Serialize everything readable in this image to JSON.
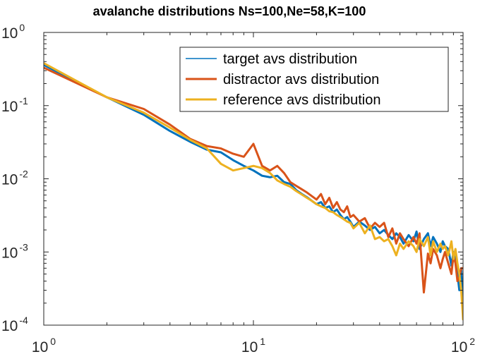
{
  "chart_data": {
    "type": "line",
    "title": "avalanche distributions Ns=100,Ne=58,K=100",
    "xlabel": "",
    "ylabel": "",
    "xscale": "log",
    "yscale": "log",
    "xlim": [
      1,
      100
    ],
    "ylim": [
      0.0001,
      1
    ],
    "grid": false,
    "legend_position": "top-right",
    "x_ticks": [
      {
        "value": 1,
        "base": "10",
        "exp": "0"
      },
      {
        "value": 10,
        "base": "10",
        "exp": "1"
      },
      {
        "value": 100,
        "base": "10",
        "exp": "2"
      }
    ],
    "y_ticks": [
      {
        "value": 1,
        "base": "10",
        "exp": "0"
      },
      {
        "value": 0.1,
        "base": "10",
        "exp": "-1"
      },
      {
        "value": 0.01,
        "base": "10",
        "exp": "-2"
      },
      {
        "value": 0.001,
        "base": "10",
        "exp": "-3"
      },
      {
        "value": 0.0001,
        "base": "10",
        "exp": "-4"
      }
    ],
    "series": [
      {
        "name": "target avs distribution",
        "color": "#0072BD",
        "points": [
          [
            1,
            0.36
          ],
          [
            2,
            0.13
          ],
          [
            3,
            0.075
          ],
          [
            4,
            0.045
          ],
          [
            5,
            0.032
          ],
          [
            6,
            0.025
          ],
          [
            7,
            0.023
          ],
          [
            8,
            0.018
          ],
          [
            9,
            0.015
          ],
          [
            10,
            0.013
          ],
          [
            11,
            0.011
          ],
          [
            12,
            0.0105
          ],
          [
            13,
            0.011
          ],
          [
            14,
            0.009
          ],
          [
            15,
            0.0085
          ],
          [
            16,
            0.007
          ],
          [
            17,
            0.0062
          ],
          [
            18,
            0.0056
          ],
          [
            19,
            0.005
          ],
          [
            20,
            0.0045
          ],
          [
            21,
            0.0048
          ],
          [
            22,
            0.004
          ],
          [
            23,
            0.0042
          ],
          [
            24,
            0.0035
          ],
          [
            25,
            0.0038
          ],
          [
            26,
            0.0032
          ],
          [
            27,
            0.0028
          ],
          [
            28,
            0.003
          ],
          [
            29,
            0.0026
          ],
          [
            30,
            0.0022
          ],
          [
            32,
            0.0026
          ],
          [
            34,
            0.0023
          ],
          [
            36,
            0.002
          ],
          [
            38,
            0.0022
          ],
          [
            40,
            0.0018
          ],
          [
            42,
            0.002
          ],
          [
            44,
            0.0017
          ],
          [
            46,
            0.0015
          ],
          [
            48,
            0.0018
          ],
          [
            50,
            0.0016
          ],
          [
            52,
            0.0013
          ],
          [
            55,
            0.0017
          ],
          [
            58,
            0.0014
          ],
          [
            60,
            0.0019
          ],
          [
            62,
            0.0011
          ],
          [
            65,
            0.0015
          ],
          [
            68,
            0.0018
          ],
          [
            70,
            0.0012
          ],
          [
            72,
            0.0016
          ],
          [
            75,
            0.0013
          ],
          [
            78,
            0.001
          ],
          [
            80,
            0.0014
          ],
          [
            82,
            0.0012
          ],
          [
            85,
            0.0011
          ],
          [
            88,
            0.00065
          ],
          [
            90,
            0.001
          ],
          [
            92,
            0.0008
          ],
          [
            94,
            0.0005
          ],
          [
            96,
            0.0003
          ],
          [
            98,
            0.0006
          ],
          [
            100,
            0.00015
          ]
        ]
      },
      {
        "name": "distractor avs distribution",
        "color": "#D95319",
        "points": [
          [
            1,
            0.33
          ],
          [
            2,
            0.13
          ],
          [
            3,
            0.09
          ],
          [
            4,
            0.055
          ],
          [
            5,
            0.035
          ],
          [
            6,
            0.028
          ],
          [
            7,
            0.026
          ],
          [
            8,
            0.022
          ],
          [
            9,
            0.02
          ],
          [
            10,
            0.03
          ],
          [
            11,
            0.015
          ],
          [
            12,
            0.013
          ],
          [
            13,
            0.015
          ],
          [
            14,
            0.012
          ],
          [
            15,
            0.009
          ],
          [
            16,
            0.008
          ],
          [
            17,
            0.0072
          ],
          [
            18,
            0.0065
          ],
          [
            19,
            0.0058
          ],
          [
            20,
            0.0052
          ],
          [
            21,
            0.0062
          ],
          [
            22,
            0.0045
          ],
          [
            23,
            0.0055
          ],
          [
            24,
            0.004
          ],
          [
            25,
            0.0048
          ],
          [
            26,
            0.0038
          ],
          [
            27,
            0.0035
          ],
          [
            28,
            0.0042
          ],
          [
            29,
            0.003
          ],
          [
            30,
            0.0032
          ],
          [
            32,
            0.0026
          ],
          [
            34,
            0.0029
          ],
          [
            36,
            0.0021
          ],
          [
            38,
            0.0025
          ],
          [
            40,
            0.0022
          ],
          [
            42,
            0.0025
          ],
          [
            44,
            0.0016
          ],
          [
            46,
            0.0021
          ],
          [
            48,
            0.0013
          ],
          [
            50,
            0.0018
          ],
          [
            52,
            0.0015
          ],
          [
            55,
            0.0012
          ],
          [
            58,
            0.0016
          ],
          [
            60,
            0.0013
          ],
          [
            62,
            0.0018
          ],
          [
            65,
            0.00028
          ],
          [
            68,
            0.00095
          ],
          [
            70,
            0.0007
          ],
          [
            72,
            0.0011
          ],
          [
            75,
            0.0009
          ],
          [
            78,
            0.0006
          ],
          [
            80,
            0.0008
          ],
          [
            82,
            0.001
          ],
          [
            85,
            0.0007
          ],
          [
            88,
            0.0005
          ],
          [
            90,
            0.0009
          ],
          [
            92,
            0.0007
          ],
          [
            94,
            0.0004
          ],
          [
            96,
            0.00045
          ],
          [
            98,
            0.0006
          ],
          [
            100,
            0.0006
          ]
        ]
      },
      {
        "name": "reference avs distribution",
        "color": "#EDB120",
        "points": [
          [
            1,
            0.38
          ],
          [
            2,
            0.13
          ],
          [
            3,
            0.08
          ],
          [
            4,
            0.05
          ],
          [
            5,
            0.034
          ],
          [
            6,
            0.026
          ],
          [
            7,
            0.016
          ],
          [
            8,
            0.013
          ],
          [
            9,
            0.014
          ],
          [
            10,
            0.015
          ],
          [
            11,
            0.014
          ],
          [
            12,
            0.012
          ],
          [
            13,
            0.0095
          ],
          [
            14,
            0.0085
          ],
          [
            15,
            0.0078
          ],
          [
            16,
            0.0068
          ],
          [
            17,
            0.0061
          ],
          [
            18,
            0.0055
          ],
          [
            19,
            0.005
          ],
          [
            20,
            0.0045
          ],
          [
            21,
            0.0042
          ],
          [
            22,
            0.004
          ],
          [
            23,
            0.0036
          ],
          [
            24,
            0.0035
          ],
          [
            25,
            0.0032
          ],
          [
            26,
            0.003
          ],
          [
            27,
            0.0028
          ],
          [
            28,
            0.0026
          ],
          [
            29,
            0.0025
          ],
          [
            30,
            0.0021
          ],
          [
            32,
            0.0025
          ],
          [
            34,
            0.0018
          ],
          [
            36,
            0.0023
          ],
          [
            38,
            0.0015
          ],
          [
            40,
            0.0016
          ],
          [
            42,
            0.0014
          ],
          [
            44,
            0.0015
          ],
          [
            46,
            0.0012
          ],
          [
            48,
            0.0009
          ],
          [
            50,
            0.0013
          ],
          [
            52,
            0.0011
          ],
          [
            55,
            0.0014
          ],
          [
            58,
            0.0012
          ],
          [
            60,
            0.001
          ],
          [
            62,
            0.0015
          ],
          [
            65,
            0.0012
          ],
          [
            68,
            0.0016
          ],
          [
            70,
            0.0009
          ],
          [
            72,
            0.0014
          ],
          [
            75,
            0.001
          ],
          [
            78,
            0.0013
          ],
          [
            80,
            0.0011
          ],
          [
            82,
            0.0012
          ],
          [
            85,
            0.0009
          ],
          [
            88,
            0.0014
          ],
          [
            90,
            0.0008
          ],
          [
            92,
            0.0011
          ],
          [
            94,
            0.0007
          ],
          [
            96,
            0.0005
          ],
          [
            98,
            0.0003
          ],
          [
            100,
            0.00012
          ]
        ]
      }
    ]
  }
}
